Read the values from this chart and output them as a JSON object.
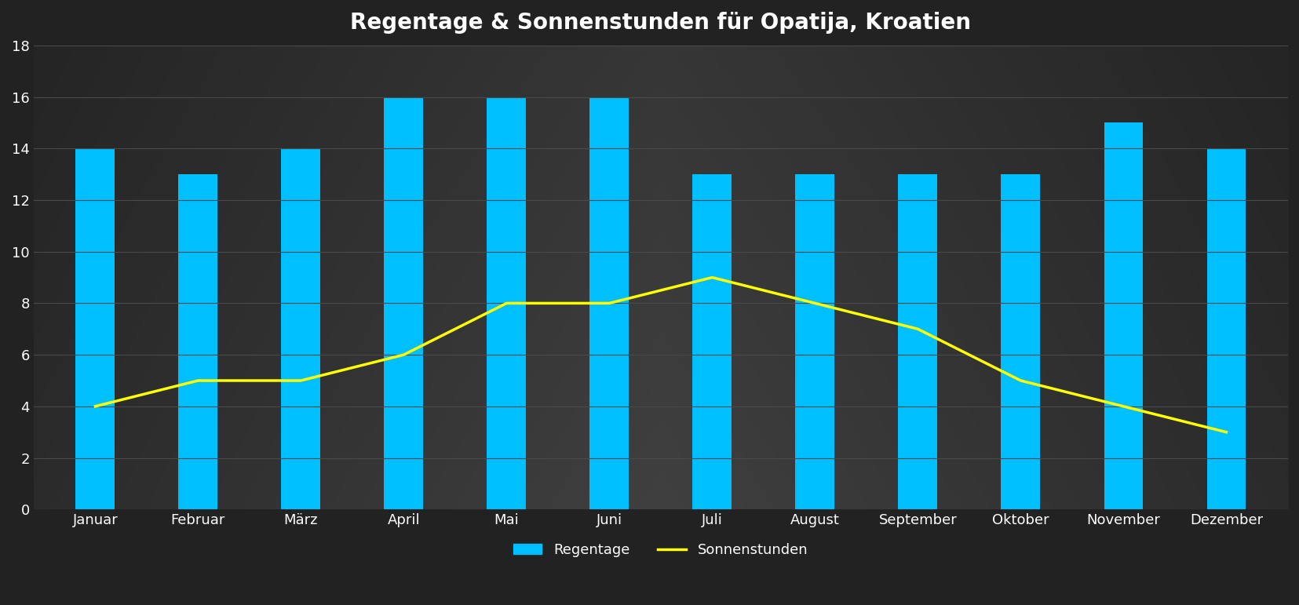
{
  "title": "Regentage & Sonnenstunden für Opatija, Kroatien",
  "months": [
    "Januar",
    "Februar",
    "März",
    "April",
    "Mai",
    "Juni",
    "Juli",
    "August",
    "September",
    "Oktober",
    "November",
    "Dezember"
  ],
  "regentage": [
    14,
    13,
    14,
    16,
    16,
    16,
    13,
    13,
    13,
    13,
    15,
    14
  ],
  "sonnenstunden": [
    4,
    5,
    5,
    6,
    8,
    8,
    9,
    8,
    7,
    5,
    4,
    3
  ],
  "bar_color": "#00BFFF",
  "line_color": "#FFFF00",
  "background_color_outer": "#222222",
  "background_color_inner": "#3a3a3a",
  "plot_bg_dark": "#2a2a2a",
  "plot_bg_mid": "#3d3d3d",
  "grid_color": "#4a4a4a",
  "text_color": "#ffffff",
  "title_fontsize": 20,
  "tick_fontsize": 13,
  "legend_fontsize": 13,
  "ylim": [
    0,
    18
  ],
  "yticks": [
    0,
    2,
    4,
    6,
    8,
    10,
    12,
    14,
    16,
    18
  ],
  "legend_labels": [
    "Regentage",
    "Sonnenstunden"
  ],
  "bar_width": 0.38
}
